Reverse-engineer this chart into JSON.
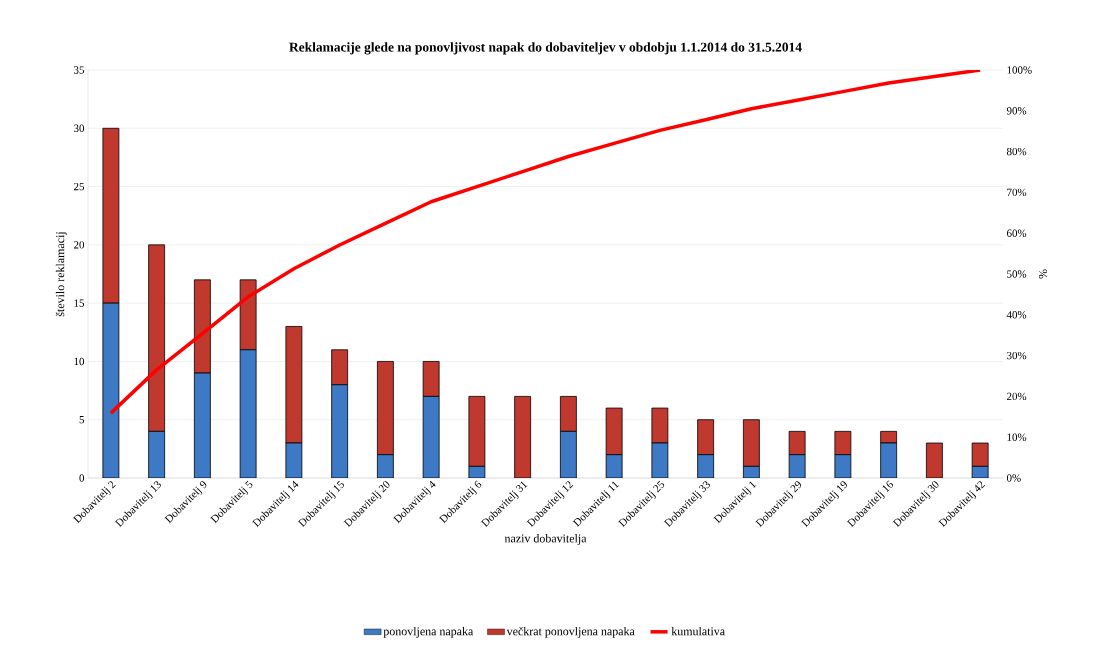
{
  "chart_data": {
    "type": "bar",
    "title": "Reklamacije glede na ponovljivost napak do dobaviteljev v obdobju 1.1.2014 do 31.5.2014",
    "xlabel": "naziv dobavitelja",
    "ylabel": "število reklamacij",
    "y2label": "%",
    "categories": [
      "Dobavitelj 2",
      "Dobavitelj 13",
      "Dobavitelj 9",
      "Dobavitelj 5",
      "Dobavitelj 14",
      "Dobavitelj 15",
      "Dobavitelj 20",
      "Dobavitelj 4",
      "Dobavitelj 6",
      "Dobavitelj 31",
      "Dobavitelj 12",
      "Dobavitelj 11",
      "Dobavitelj 25",
      "Dobavitelj 33",
      "Dobavitelj 1",
      "Dobavitelj 29",
      "Dobavitelj 19",
      "Dobavitelj 16",
      "Dobavitelj 30",
      "Dobavitelj 42"
    ],
    "stacked": true,
    "series": [
      {
        "name": "ponovljena napaka",
        "color": "#3d79c4",
        "values": [
          15,
          4,
          9,
          11,
          3,
          8,
          2,
          7,
          1,
          0,
          4,
          2,
          3,
          2,
          1,
          2,
          2,
          3,
          0,
          1
        ]
      },
      {
        "name": "večkrat ponovljena napaka",
        "color": "#c0392f",
        "values": [
          15,
          16,
          8,
          6,
          10,
          3,
          8,
          3,
          6,
          7,
          3,
          4,
          3,
          3,
          4,
          2,
          2,
          1,
          3,
          2
        ]
      },
      {
        "name": "kumulativa",
        "type": "line",
        "axis": "y2",
        "color": "#ff0000",
        "values": [
          15.9,
          26.5,
          35.4,
          44.4,
          51.3,
          57.1,
          62.4,
          67.7,
          71.4,
          75.1,
          78.8,
          82.0,
          85.2,
          87.8,
          90.5,
          92.6,
          94.7,
          96.8,
          98.4,
          100
        ]
      }
    ],
    "ylim": [
      0,
      35
    ],
    "yticks": [
      0,
      5,
      10,
      15,
      20,
      25,
      30,
      35
    ],
    "y2lim": [
      0,
      100
    ],
    "y2ticks": [
      {
        "value": 0,
        "label": "0%"
      },
      {
        "value": 10,
        "label": "10%"
      },
      {
        "value": 20,
        "label": "20%"
      },
      {
        "value": 30,
        "label": "30%"
      },
      {
        "value": 40,
        "label": "40%"
      },
      {
        "value": 50,
        "label": "50%"
      },
      {
        "value": 60,
        "label": "60%"
      },
      {
        "value": 70,
        "label": "70%"
      },
      {
        "value": 80,
        "label": "80%"
      },
      {
        "value": 90,
        "label": "90%"
      },
      {
        "value": 100,
        "label": "100%"
      }
    ],
    "grid": "y",
    "legend": "bottom",
    "marker": "none",
    "line_style": "solid"
  }
}
